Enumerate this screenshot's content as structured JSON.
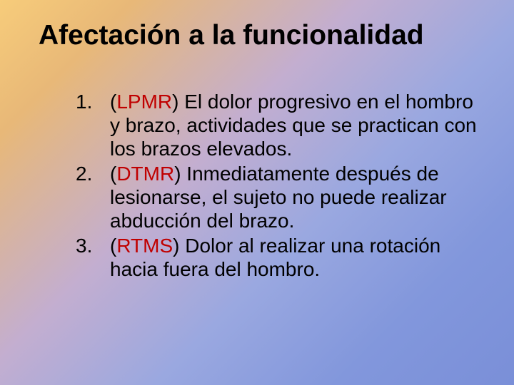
{
  "slide": {
    "title": "Afectación a la funcionalidad",
    "title_fontsize": 39,
    "title_color": "#000000",
    "body_fontsize": 28,
    "body_color": "#000000",
    "abbr_color": "#c00000",
    "background_gradient": [
      "#f7cc7a",
      "#e8b878",
      "#c3aed0",
      "#9aa8e0",
      "#8297dc",
      "#7a8fd8"
    ],
    "items": [
      {
        "paren_open": "(",
        "abbr": "LPMR",
        "paren_close": ")",
        "text": " El dolor progresivo en el hombro y brazo, actividades que se practican con los brazos elevados."
      },
      {
        "paren_open": "(",
        "abbr": "DTMR",
        "paren_close": ")",
        "text": " Inmediatamente después de lesionarse, el sujeto no puede realizar abducción del brazo."
      },
      {
        "paren_open": "(",
        "abbr": "RTMS",
        "paren_close": ")",
        "text": " Dolor al realizar una rotación hacia fuera del hombro."
      }
    ]
  }
}
